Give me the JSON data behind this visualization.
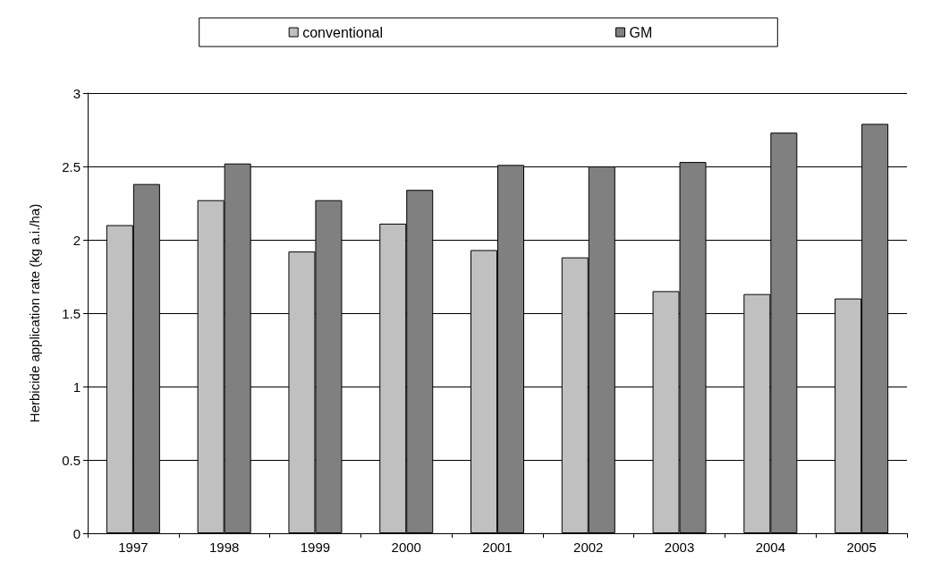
{
  "chart_data": {
    "type": "bar",
    "ylabel": "Herbicide application rate (kg a.i./ha)",
    "categories": [
      "1997",
      "1998",
      "1999",
      "2000",
      "2001",
      "2002",
      "2003",
      "2004",
      "2005"
    ],
    "series": [
      {
        "name": "conventional",
        "color": "#c0c0c0",
        "values": [
          2.1,
          2.27,
          1.92,
          2.11,
          1.93,
          1.88,
          1.65,
          1.63,
          1.6
        ]
      },
      {
        "name": "GM",
        "color": "#808080",
        "values": [
          2.38,
          2.52,
          2.27,
          2.34,
          2.51,
          2.5,
          2.53,
          2.73,
          2.79
        ]
      }
    ],
    "ylim": [
      0,
      3
    ],
    "yticks": [
      0,
      0.5,
      1,
      1.5,
      2,
      2.5,
      3
    ],
    "grid": "y",
    "legend": "top"
  }
}
